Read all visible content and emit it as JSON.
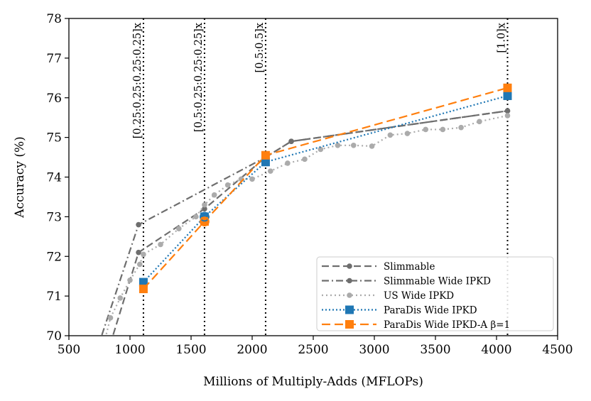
{
  "chart_data": {
    "type": "line",
    "xlabel": "Millions of Multiply-Adds (MFLOPs)",
    "ylabel": "Accuracy (%)",
    "xlim": [
      500,
      4500
    ],
    "ylim": [
      70,
      78
    ],
    "xticks": [
      500,
      1000,
      1500,
      2000,
      2500,
      3000,
      3500,
      4000,
      4500
    ],
    "yticks": [
      70,
      71,
      72,
      73,
      74,
      75,
      76,
      77,
      78
    ],
    "grid": false,
    "legend_position": "bottom-right",
    "vertical_lines": [
      {
        "x": 1110,
        "label": "[0.25:0.25:0.25:0.25]x"
      },
      {
        "x": 1610,
        "label": "[0.5:0.25:0.25:0.25]x"
      },
      {
        "x": 2110,
        "label": "[0.5:0.5]x"
      },
      {
        "x": 4090,
        "label": "[1.0]x"
      }
    ],
    "series": [
      {
        "name": "Slimmable",
        "color": "#6e6e6e",
        "dash": "10,5",
        "marker": "circle",
        "x": [
          760,
          1070,
          1610,
          2110,
          2320,
          4090
        ],
        "y": [
          69.0,
          72.1,
          73.2,
          74.5,
          74.9,
          75.67
        ]
      },
      {
        "name": "Slimmable Wide IPKD",
        "color": "#6e6e6e",
        "dash": "10,4,2,4",
        "marker": "circle",
        "x": [
          660,
          1070,
          2110,
          2320,
          4090
        ],
        "y": [
          69.0,
          72.8,
          74.5,
          74.9,
          75.67
        ]
      },
      {
        "name": "US Wide IPKD",
        "color": "#ababab",
        "dash": "2,4",
        "marker": "circle",
        "x": [
          720,
          840,
          920,
          1000,
          1080,
          1110,
          1250,
          1400,
          1540,
          1610,
          1690,
          1800,
          1910,
          2000,
          2150,
          2290,
          2430,
          2560,
          2700,
          2830,
          2980,
          3130,
          3270,
          3420,
          3560,
          3710,
          3860,
          4090
        ],
        "y": [
          69.0,
          70.45,
          70.95,
          71.4,
          71.8,
          72.05,
          72.3,
          72.7,
          73.0,
          73.3,
          73.55,
          73.8,
          73.95,
          73.95,
          74.15,
          74.35,
          74.45,
          74.7,
          74.8,
          74.8,
          74.78,
          75.06,
          75.1,
          75.2,
          75.2,
          75.25,
          75.4,
          75.55
        ]
      },
      {
        "name": "ParaDis Wide IPKD",
        "color": "#1f77b4",
        "dash": "2,3",
        "marker": "square",
        "x": [
          1110,
          1610,
          2110,
          4090
        ],
        "y": [
          71.35,
          73.0,
          74.38,
          76.05
        ]
      },
      {
        "name": "ParaDis Wide IPKD-A β=1",
        "color": "#ff7f0e",
        "dash": "12,6",
        "marker": "square",
        "x": [
          1110,
          1610,
          2110,
          4090
        ],
        "y": [
          71.18,
          72.88,
          74.55,
          76.25
        ]
      }
    ]
  }
}
